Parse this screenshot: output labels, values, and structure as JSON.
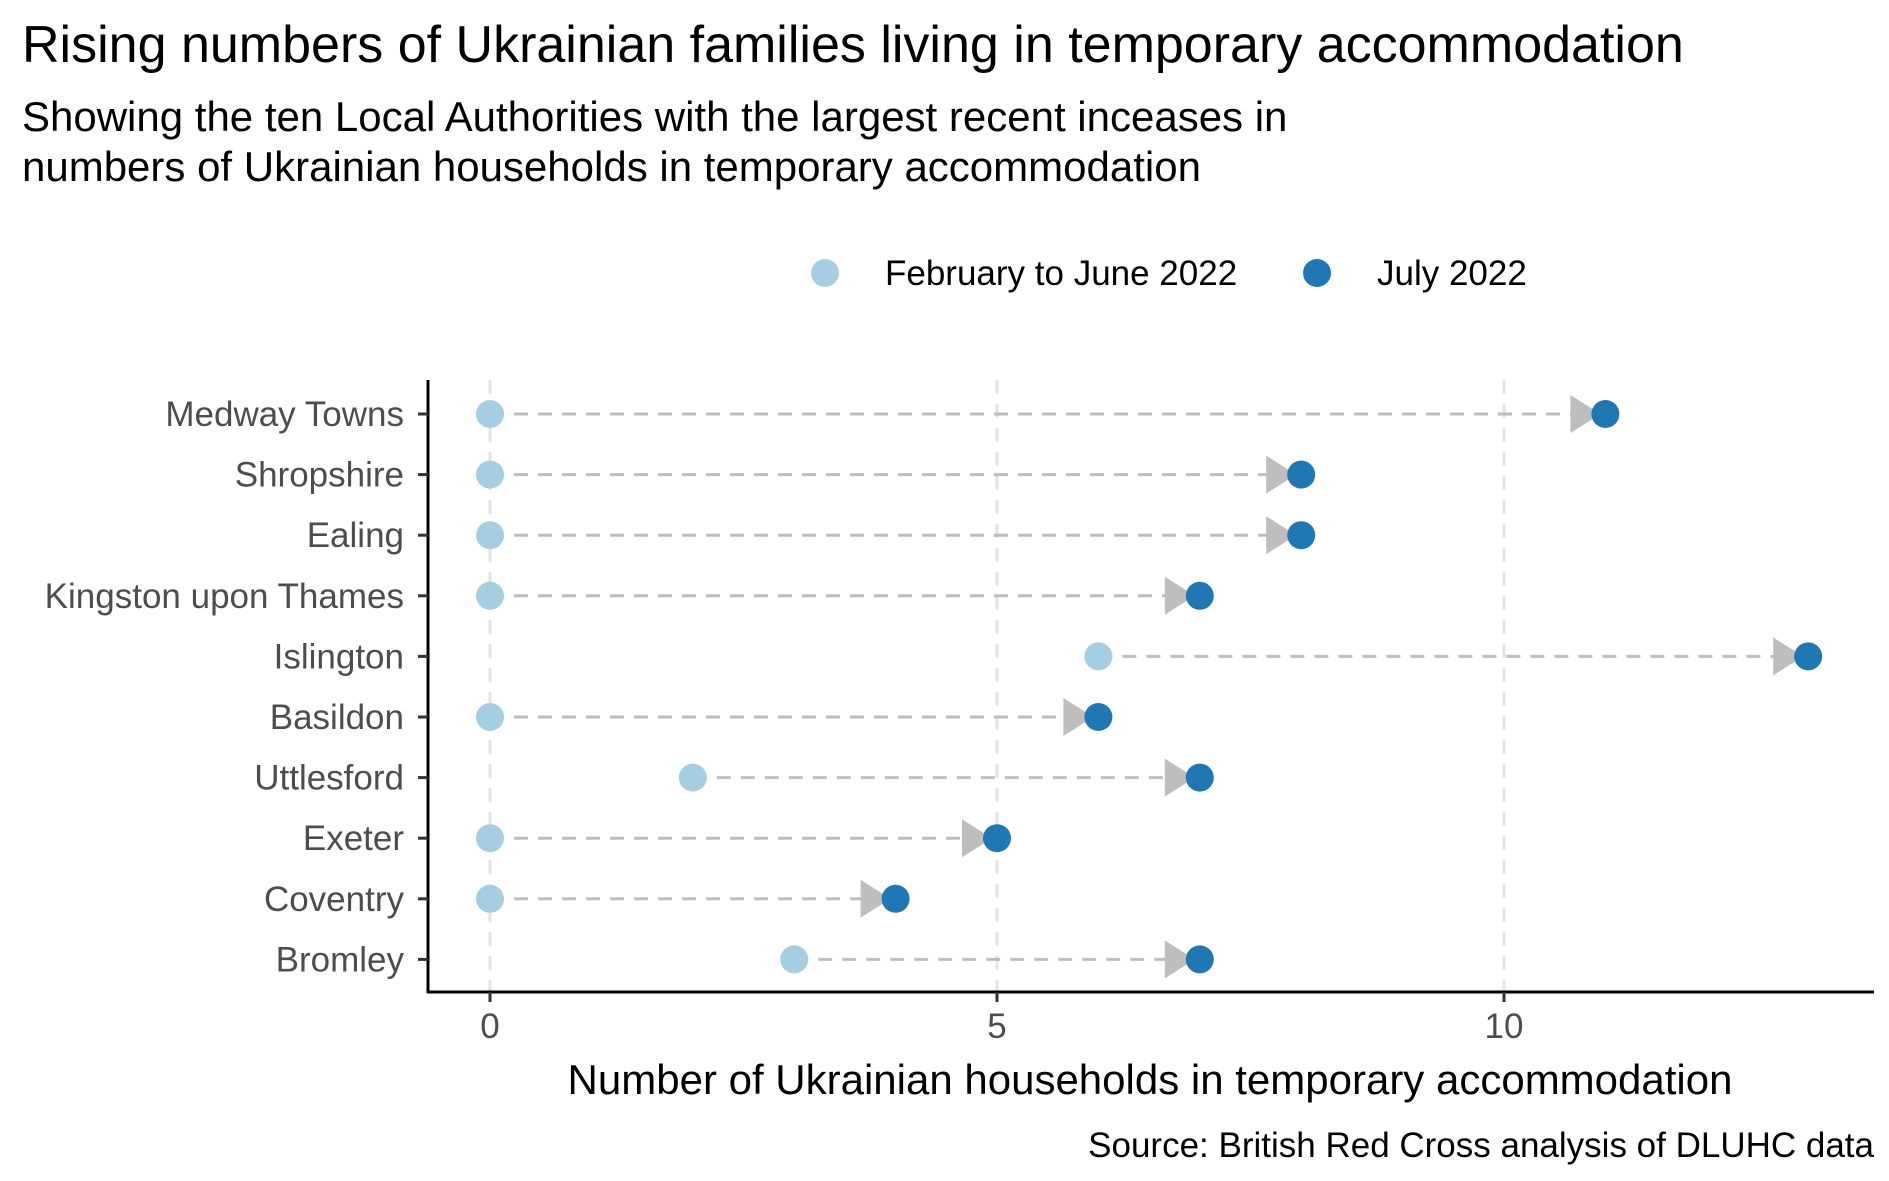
{
  "title": "Rising numbers of Ukrainian families living in temporary accommodation",
  "subtitle_lines": [
    "Showing the ten Local Authorities with the largest recent inceases in",
    "numbers of Ukrainian households in temporary accommodation"
  ],
  "caption": "Source: British Red Cross analysis of DLUHC data",
  "colors": {
    "start": "#a6cee3",
    "end": "#1f78b4",
    "arrow": "#bebebe",
    "grid": "#e3e3e3"
  },
  "chart_data": {
    "type": "scatter",
    "subtype": "dumbbell-arrow",
    "xlabel": "Number of Ukrainian households in temporary accommodation",
    "ylabel": "",
    "xlim": [
      -0.65,
      13.65
    ],
    "xticks": [
      0,
      5,
      10
    ],
    "grid": "vertical-dashed",
    "legend_position": "top",
    "categories": [
      "Medway Towns",
      "Shropshire",
      "Ealing",
      "Kingston upon Thames",
      "Islington",
      "Basildon",
      "Uttlesford",
      "Exeter",
      "Coventry",
      "Bromley"
    ],
    "series": [
      {
        "name": "February to June 2022",
        "values": [
          0,
          0,
          0,
          0,
          6,
          0,
          2,
          0,
          0,
          3
        ]
      },
      {
        "name": "July 2022",
        "values": [
          11,
          8,
          8,
          7,
          13,
          6,
          7,
          5,
          4,
          7
        ]
      }
    ]
  }
}
